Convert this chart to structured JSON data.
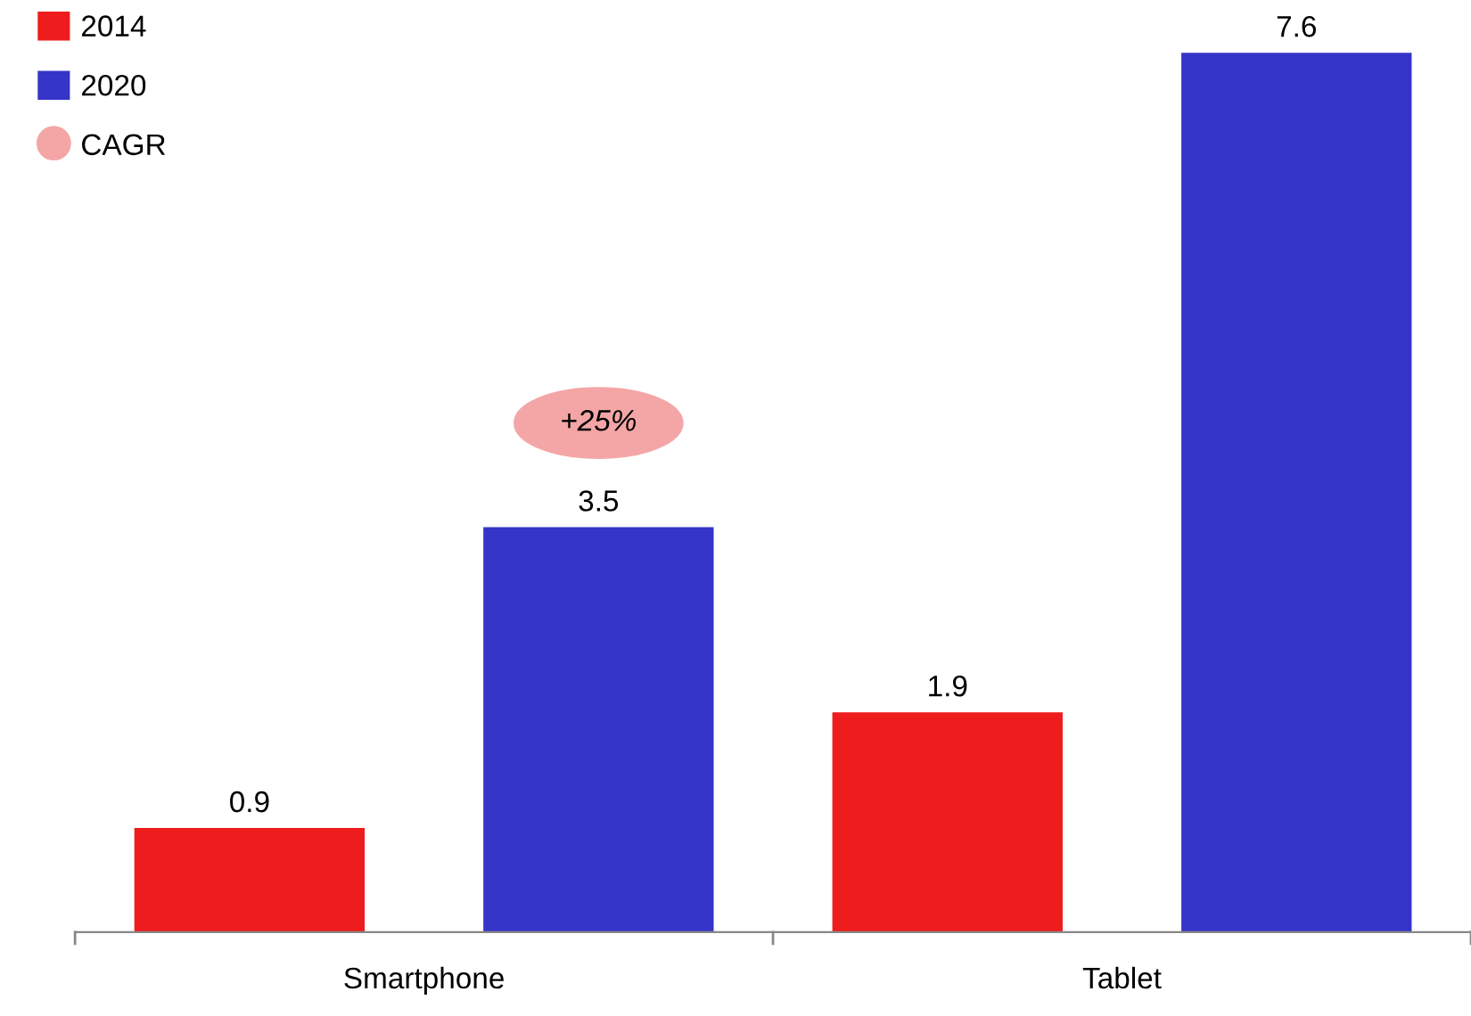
{
  "chart_data": {
    "type": "bar",
    "categories": [
      "Smartphone",
      "Tablet"
    ],
    "series": [
      {
        "name": "2014",
        "color": "#ee1c1c",
        "values": [
          0.9,
          1.9
        ]
      },
      {
        "name": "2020",
        "color": "#3535c8",
        "values": [
          3.5,
          7.6
        ]
      },
      {
        "name": "CAGR",
        "type": "scatter",
        "color": "#f4a6a6",
        "values": [
          null,
          null
        ]
      }
    ],
    "annotations": [
      "+25%"
    ],
    "data_labels": true,
    "legend": "top left",
    "grid": false
  }
}
